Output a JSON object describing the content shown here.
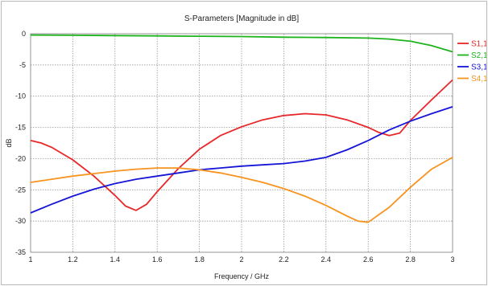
{
  "chart_data": {
    "type": "line",
    "title": "S-Parameters [Magnitude in dB]",
    "xlabel": "Frequency / GHz",
    "ylabel": "dB",
    "xlim": [
      1,
      3
    ],
    "ylim": [
      -35,
      0
    ],
    "xticks": [
      "1",
      "1.2",
      "1.4",
      "1.6",
      "1.8",
      "2",
      "2.2",
      "2.4",
      "2.6",
      "2.8",
      "3"
    ],
    "yticks": [
      "0",
      "-5",
      "-10",
      "-15",
      "-20",
      "-25",
      "-30",
      "-35"
    ],
    "grid": true,
    "legend_position": "right",
    "series": [
      {
        "name": "S1,1",
        "color": "#e8272a",
        "x": [
          1.0,
          1.05,
          1.1,
          1.2,
          1.3,
          1.4,
          1.45,
          1.5,
          1.55,
          1.6,
          1.7,
          1.8,
          1.9,
          2.0,
          2.1,
          2.2,
          2.3,
          2.4,
          2.5,
          2.6,
          2.65,
          2.7,
          2.75,
          2.8,
          2.9,
          3.0
        ],
        "y": [
          -17.1,
          -17.5,
          -18.2,
          -20.2,
          -22.8,
          -25.9,
          -27.6,
          -28.3,
          -27.3,
          -25.3,
          -21.6,
          -18.5,
          -16.3,
          -14.9,
          -13.8,
          -13.1,
          -12.8,
          -13.0,
          -13.8,
          -15.0,
          -15.8,
          -16.3,
          -15.9,
          -13.9,
          -10.6,
          -7.4
        ]
      },
      {
        "name": "S2,1",
        "color": "#1db31d",
        "x": [
          1.0,
          1.2,
          1.4,
          1.6,
          1.8,
          2.0,
          2.2,
          2.4,
          2.6,
          2.7,
          2.8,
          2.9,
          3.0
        ],
        "y": [
          -0.2,
          -0.25,
          -0.3,
          -0.35,
          -0.4,
          -0.45,
          -0.55,
          -0.6,
          -0.7,
          -0.85,
          -1.2,
          -1.9,
          -2.9
        ]
      },
      {
        "name": "S3,1",
        "color": "#1515d8",
        "x": [
          1.0,
          1.1,
          1.2,
          1.3,
          1.4,
          1.5,
          1.6,
          1.7,
          1.8,
          1.9,
          2.0,
          2.1,
          2.2,
          2.3,
          2.4,
          2.5,
          2.6,
          2.7,
          2.8,
          2.9,
          3.0
        ],
        "y": [
          -28.7,
          -27.3,
          -26.0,
          -24.9,
          -24.0,
          -23.3,
          -22.8,
          -22.3,
          -21.8,
          -21.5,
          -21.2,
          -21.0,
          -20.8,
          -20.4,
          -19.8,
          -18.6,
          -17.1,
          -15.4,
          -14.0,
          -12.8,
          -11.7
        ]
      },
      {
        "name": "S4,1",
        "color": "#f7931e",
        "x": [
          1.0,
          1.1,
          1.2,
          1.3,
          1.4,
          1.5,
          1.6,
          1.7,
          1.8,
          1.9,
          2.0,
          2.1,
          2.2,
          2.3,
          2.4,
          2.5,
          2.55,
          2.6,
          2.7,
          2.8,
          2.9,
          3.0
        ],
        "y": [
          -23.8,
          -23.3,
          -22.8,
          -22.4,
          -22.0,
          -21.7,
          -21.5,
          -21.5,
          -21.8,
          -22.3,
          -23.0,
          -23.8,
          -24.8,
          -26.0,
          -27.5,
          -29.2,
          -30.0,
          -30.2,
          -27.8,
          -24.6,
          -21.7,
          -19.8
        ]
      }
    ]
  }
}
